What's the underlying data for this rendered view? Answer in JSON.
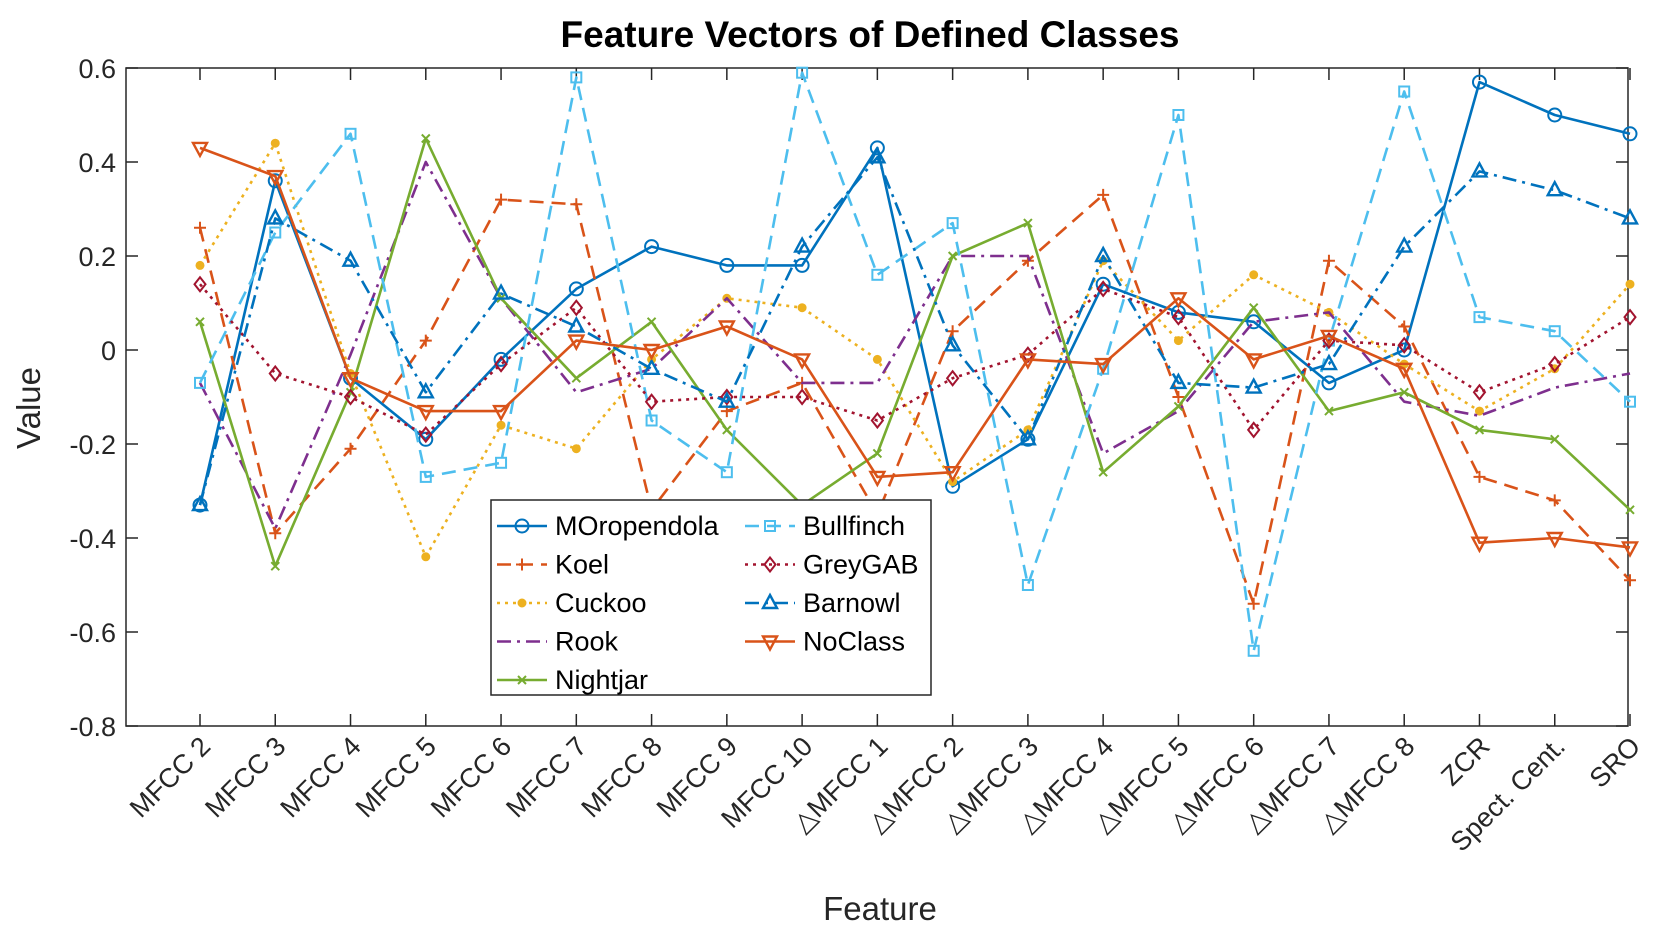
{
  "chart_data": {
    "type": "line",
    "title": "Feature Vectors of Defined Classes",
    "xlabel": "Feature",
    "ylabel": "Value",
    "ylim": [
      -0.8,
      0.6
    ],
    "yticks": [
      -0.8,
      -0.6,
      -0.4,
      -0.2,
      0,
      0.2,
      0.4,
      0.6
    ],
    "ytick_labels": [
      "-0.8",
      "-0.6",
      "-0.4",
      "-0.2",
      "0",
      "0.2",
      "0.4",
      "0.6"
    ],
    "categories": [
      "MFCC 2",
      "MFCC 3",
      "MFCC 4",
      "MFCC 5",
      "MFCC 6",
      "MFCC 7",
      "MFCC 8",
      "MFCC 9",
      "MFCC 10",
      "△MFCC 1",
      "△MFCC 2",
      "△MFCC 3",
      "△MFCC 4",
      "△MFCC 5",
      "△MFCC 6",
      "△MFCC 7",
      "△MFCC 8",
      "ZCR",
      "Spect. Cent.",
      "SRO"
    ],
    "grid": false,
    "legend_position": "bottom-center",
    "series": [
      {
        "name": "MOropendola",
        "color": "#0072BD",
        "dash": "solid",
        "marker": "circle",
        "values": [
          -0.33,
          0.36,
          -0.06,
          -0.19,
          -0.02,
          0.13,
          0.22,
          0.18,
          0.18,
          0.43,
          -0.29,
          -0.19,
          0.14,
          0.08,
          0.06,
          -0.07,
          0.0,
          0.57,
          0.5,
          0.46
        ]
      },
      {
        "name": "Koel",
        "color": "#D95319",
        "dash": "dashed",
        "marker": "plus",
        "values": [
          0.26,
          -0.39,
          -0.21,
          0.02,
          0.32,
          0.31,
          -0.34,
          -0.13,
          -0.07,
          -0.35,
          0.04,
          0.19,
          0.33,
          -0.1,
          -0.54,
          0.19,
          0.05,
          -0.27,
          -0.32,
          -0.49
        ]
      },
      {
        "name": "Cuckoo",
        "color": "#EDB120",
        "dash": "dotted",
        "marker": "dot",
        "values": [
          0.18,
          0.44,
          -0.05,
          -0.44,
          -0.16,
          -0.21,
          -0.02,
          0.11,
          0.09,
          -0.02,
          -0.28,
          -0.17,
          0.19,
          0.02,
          0.16,
          0.08,
          -0.03,
          -0.13,
          -0.04,
          0.14
        ]
      },
      {
        "name": "Rook",
        "color": "#7E2F8E",
        "dash": "dashdot",
        "marker": "none",
        "values": [
          -0.07,
          -0.38,
          -0.01,
          0.4,
          0.11,
          -0.09,
          -0.04,
          0.11,
          -0.07,
          -0.07,
          0.2,
          0.2,
          -0.22,
          -0.13,
          0.06,
          0.08,
          -0.11,
          -0.14,
          -0.08,
          -0.05
        ]
      },
      {
        "name": "Nightjar",
        "color": "#77AC30",
        "dash": "solid",
        "marker": "x",
        "values": [
          0.06,
          -0.46,
          -0.09,
          0.45,
          0.11,
          -0.06,
          0.06,
          -0.17,
          -0.33,
          -0.22,
          0.2,
          0.27,
          -0.26,
          -0.12,
          0.09,
          -0.13,
          -0.09,
          -0.17,
          -0.19,
          -0.34
        ]
      },
      {
        "name": "Bullfinch",
        "color": "#4DBEEE",
        "dash": "dashed",
        "marker": "square",
        "values": [
          -0.07,
          0.25,
          0.46,
          -0.27,
          -0.24,
          0.58,
          -0.15,
          -0.26,
          0.59,
          0.16,
          0.27,
          -0.5,
          -0.04,
          0.5,
          -0.64,
          0.02,
          0.55,
          0.07,
          0.04,
          -0.11
        ]
      },
      {
        "name": "GreyGAB",
        "color": "#A2142F",
        "dash": "dotted",
        "marker": "diamond",
        "values": [
          0.14,
          -0.05,
          -0.1,
          -0.18,
          -0.03,
          0.09,
          -0.11,
          -0.1,
          -0.1,
          -0.15,
          -0.06,
          -0.01,
          0.13,
          0.07,
          -0.17,
          0.02,
          0.01,
          -0.09,
          -0.03,
          0.07
        ]
      },
      {
        "name": "Barnowl",
        "color": "#0072BD",
        "dash": "dashdot",
        "marker": "triangle-up",
        "values": [
          -0.33,
          0.28,
          0.19,
          -0.09,
          0.12,
          0.05,
          -0.04,
          -0.11,
          0.22,
          0.41,
          0.01,
          -0.19,
          0.2,
          -0.07,
          -0.08,
          -0.03,
          0.22,
          0.38,
          0.34,
          0.28
        ]
      },
      {
        "name": "NoClass",
        "color": "#D95319",
        "dash": "solid",
        "marker": "triangle-down",
        "values": [
          0.43,
          0.37,
          -0.06,
          -0.13,
          -0.13,
          0.02,
          0.0,
          0.05,
          -0.02,
          -0.27,
          -0.26,
          -0.02,
          -0.03,
          0.11,
          -0.02,
          0.03,
          -0.04,
          -0.41,
          -0.4,
          -0.42
        ]
      }
    ]
  }
}
